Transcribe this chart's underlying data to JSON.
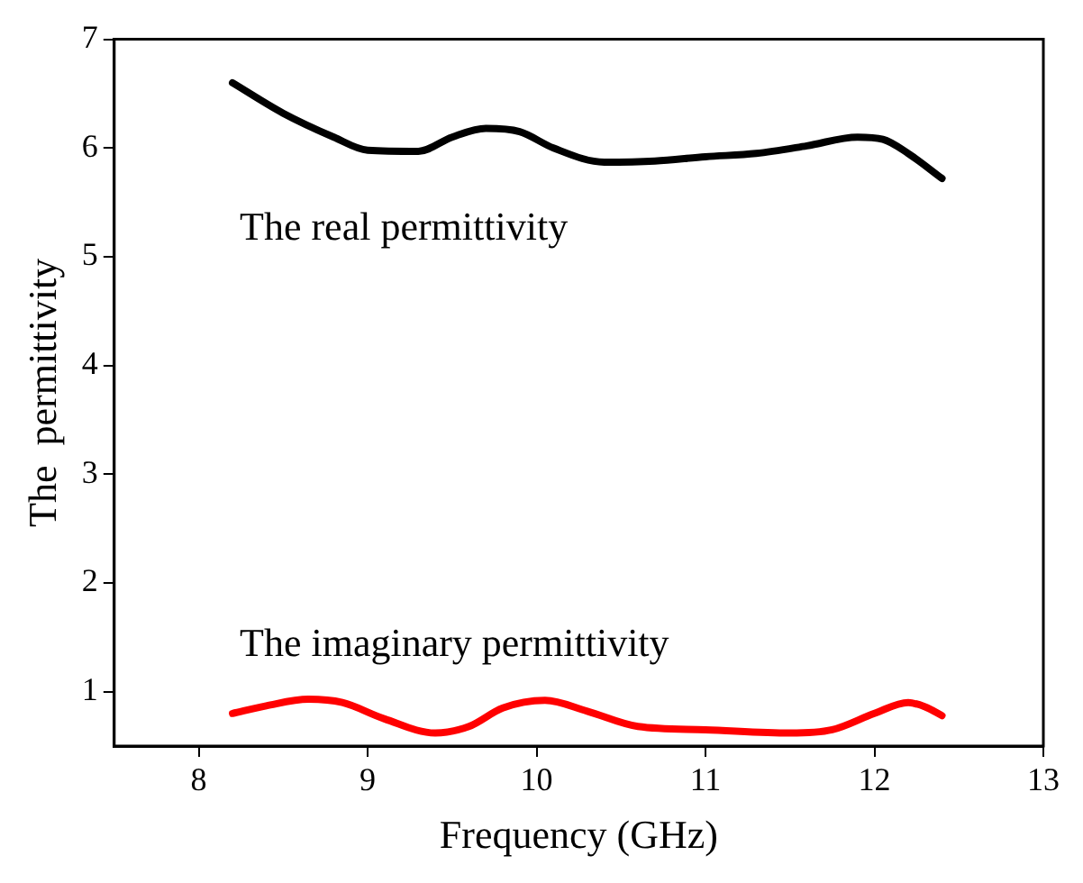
{
  "chart_data": {
    "type": "line",
    "xlabel": "Frequency (GHz)",
    "ylabel": "The  permittivity",
    "xlim": [
      7.5,
      13
    ],
    "xticks": [
      8,
      9,
      10,
      11,
      12,
      13
    ],
    "ylim": [
      0.5,
      7
    ],
    "yticks": [
      1,
      2,
      3,
      4,
      5,
      6,
      7
    ],
    "grid": false,
    "legend": false,
    "marker": "none",
    "series": [
      {
        "name": "The real permittivity",
        "color": "#000000",
        "x": [
          8.2,
          8.5,
          8.8,
          9.0,
          9.3,
          9.5,
          9.7,
          9.9,
          10.1,
          10.4,
          10.7,
          11.0,
          11.3,
          11.6,
          11.9,
          12.05,
          12.2,
          12.4
        ],
        "values": [
          6.6,
          6.32,
          6.1,
          5.98,
          5.97,
          6.1,
          6.18,
          6.15,
          6.0,
          5.87,
          5.88,
          5.92,
          5.95,
          6.02,
          6.1,
          6.08,
          5.95,
          5.72
        ]
      },
      {
        "name": "The imaginary permittivity",
        "color": "#ff0000",
        "x": [
          8.2,
          8.4,
          8.65,
          8.85,
          9.1,
          9.4,
          9.6,
          9.8,
          10.05,
          10.3,
          10.6,
          11.0,
          11.5,
          11.75,
          12.0,
          12.2,
          12.3,
          12.4
        ],
        "values": [
          0.8,
          0.87,
          0.93,
          0.9,
          0.75,
          0.62,
          0.68,
          0.85,
          0.92,
          0.82,
          0.68,
          0.65,
          0.62,
          0.65,
          0.8,
          0.9,
          0.86,
          0.78
        ]
      }
    ]
  }
}
